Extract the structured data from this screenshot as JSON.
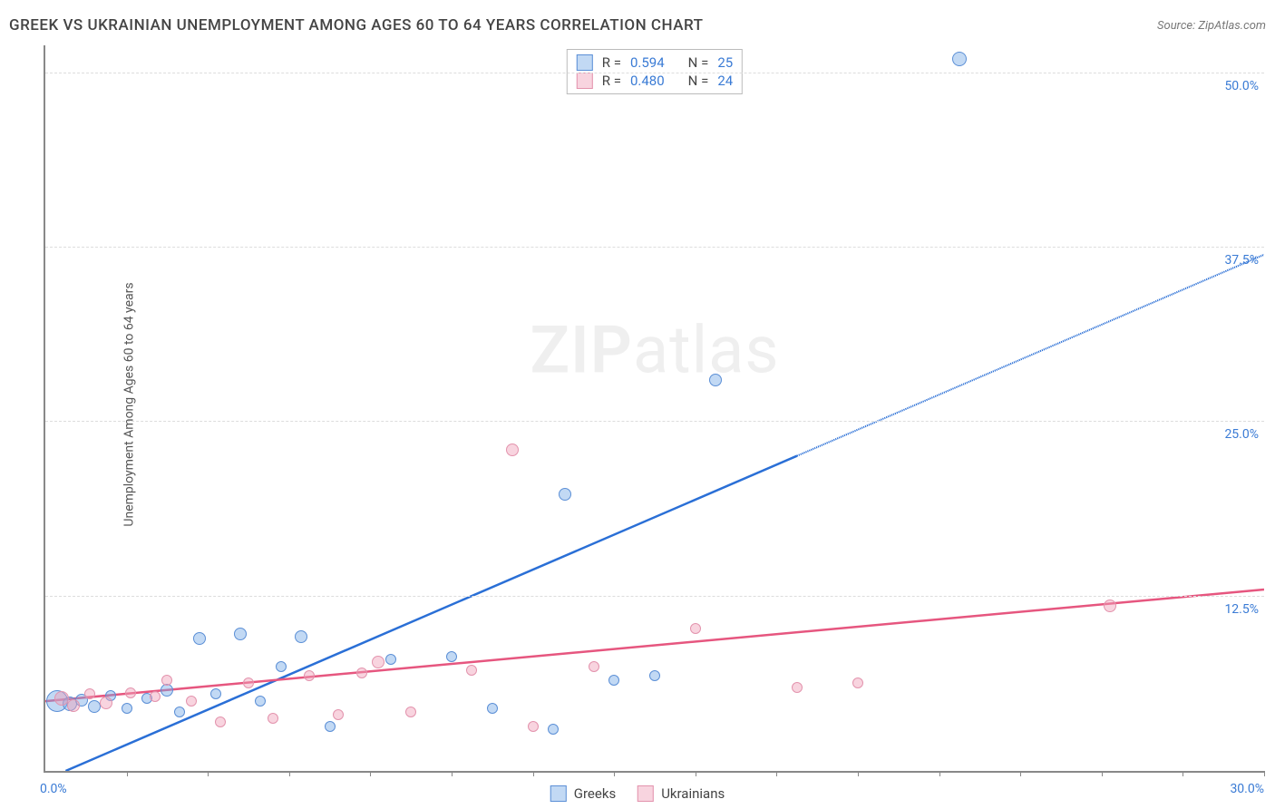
{
  "header": {
    "title": "GREEK VS UKRAINIAN UNEMPLOYMENT AMONG AGES 60 TO 64 YEARS CORRELATION CHART",
    "source": "Source: ZipAtlas.com"
  },
  "chart": {
    "type": "scatter",
    "y_axis_label": "Unemployment Among Ages 60 to 64 years",
    "xlim": [
      0,
      30
    ],
    "ylim": [
      0,
      52
    ],
    "x_ticks_minor_step": 2,
    "y_gridlines": [
      12.5,
      25,
      37.5,
      50
    ],
    "y_tick_labels": [
      "12.5%",
      "25.0%",
      "37.5%",
      "50.0%"
    ],
    "x_start_label": "0.0%",
    "x_end_label": "30.0%",
    "grid_color": "#dddddd",
    "axis_color": "#888888",
    "axis_value_color": "#3a7bd5",
    "background_color": "#ffffff",
    "watermark": {
      "bold": "ZIP",
      "rest": "atlas"
    },
    "series": [
      {
        "name": "Greeks",
        "fill_color": "rgba(120,170,230,0.45)",
        "stroke_color": "#5b8fd6",
        "trend_color": "#2a6fd6",
        "trend": {
          "x1": 0.5,
          "y1": 0,
          "x2": 30,
          "y2": 37,
          "solid_until_x": 18.5
        },
        "points": [
          {
            "x": 0.3,
            "y": 5.0,
            "r": 12
          },
          {
            "x": 0.6,
            "y": 4.8,
            "r": 8
          },
          {
            "x": 0.9,
            "y": 5.1,
            "r": 7
          },
          {
            "x": 1.2,
            "y": 4.6,
            "r": 7
          },
          {
            "x": 1.6,
            "y": 5.4,
            "r": 6
          },
          {
            "x": 2.0,
            "y": 4.5,
            "r": 6
          },
          {
            "x": 2.5,
            "y": 5.2,
            "r": 6
          },
          {
            "x": 3.0,
            "y": 5.8,
            "r": 7
          },
          {
            "x": 3.3,
            "y": 4.2,
            "r": 6
          },
          {
            "x": 3.8,
            "y": 9.5,
            "r": 7
          },
          {
            "x": 4.2,
            "y": 5.5,
            "r": 6
          },
          {
            "x": 4.8,
            "y": 9.8,
            "r": 7
          },
          {
            "x": 5.3,
            "y": 5.0,
            "r": 6
          },
          {
            "x": 5.8,
            "y": 7.5,
            "r": 6
          },
          {
            "x": 6.3,
            "y": 9.6,
            "r": 7
          },
          {
            "x": 7.0,
            "y": 3.2,
            "r": 6
          },
          {
            "x": 8.5,
            "y": 8.0,
            "r": 6
          },
          {
            "x": 10.0,
            "y": 8.2,
            "r": 6
          },
          {
            "x": 11.0,
            "y": 4.5,
            "r": 6
          },
          {
            "x": 12.5,
            "y": 3.0,
            "r": 6
          },
          {
            "x": 12.8,
            "y": 19.8,
            "r": 7
          },
          {
            "x": 14.0,
            "y": 6.5,
            "r": 6
          },
          {
            "x": 15.0,
            "y": 6.8,
            "r": 6
          },
          {
            "x": 16.5,
            "y": 28.0,
            "r": 7
          },
          {
            "x": 22.5,
            "y": 51,
            "r": 8
          }
        ]
      },
      {
        "name": "Ukrainians",
        "fill_color": "rgba(240,160,185,0.45)",
        "stroke_color": "#e393ad",
        "trend_color": "#e6567f",
        "trend": {
          "x1": 0,
          "y1": 5.0,
          "x2": 30,
          "y2": 13.0,
          "solid_until_x": 30
        },
        "points": [
          {
            "x": 0.4,
            "y": 5.2,
            "r": 8
          },
          {
            "x": 0.7,
            "y": 4.7,
            "r": 7
          },
          {
            "x": 1.1,
            "y": 5.5,
            "r": 6
          },
          {
            "x": 1.5,
            "y": 4.9,
            "r": 7
          },
          {
            "x": 2.1,
            "y": 5.6,
            "r": 6
          },
          {
            "x": 2.7,
            "y": 5.3,
            "r": 6
          },
          {
            "x": 3.0,
            "y": 6.5,
            "r": 6
          },
          {
            "x": 3.6,
            "y": 5.0,
            "r": 6
          },
          {
            "x": 4.3,
            "y": 3.5,
            "r": 6
          },
          {
            "x": 5.0,
            "y": 6.3,
            "r": 6
          },
          {
            "x": 5.6,
            "y": 3.8,
            "r": 6
          },
          {
            "x": 6.5,
            "y": 6.8,
            "r": 6
          },
          {
            "x": 7.2,
            "y": 4.0,
            "r": 6
          },
          {
            "x": 7.8,
            "y": 7.0,
            "r": 6
          },
          {
            "x": 8.2,
            "y": 7.8,
            "r": 7
          },
          {
            "x": 9.0,
            "y": 4.2,
            "r": 6
          },
          {
            "x": 10.5,
            "y": 7.2,
            "r": 6
          },
          {
            "x": 11.5,
            "y": 23.0,
            "r": 7
          },
          {
            "x": 12.0,
            "y": 3.2,
            "r": 6
          },
          {
            "x": 13.5,
            "y": 7.5,
            "r": 6
          },
          {
            "x": 16.0,
            "y": 10.2,
            "r": 6
          },
          {
            "x": 18.5,
            "y": 6.0,
            "r": 6
          },
          {
            "x": 20.0,
            "y": 6.3,
            "r": 6
          },
          {
            "x": 26.2,
            "y": 11.8,
            "r": 7
          }
        ]
      }
    ],
    "correlation_legend": [
      {
        "swatch_fill": "rgba(120,170,230,0.45)",
        "swatch_stroke": "#5b8fd6",
        "r_label": "R  =",
        "r_value": "0.594",
        "n_label": "N  =",
        "n_value": "25"
      },
      {
        "swatch_fill": "rgba(240,160,185,0.45)",
        "swatch_stroke": "#e393ad",
        "r_label": "R  =",
        "r_value": "0.480",
        "n_label": "N  =",
        "n_value": "24"
      }
    ],
    "bottom_legend": [
      {
        "label": "Greeks",
        "swatch_fill": "rgba(120,170,230,0.45)",
        "swatch_stroke": "#5b8fd6"
      },
      {
        "label": "Ukrainians",
        "swatch_fill": "rgba(240,160,185,0.45)",
        "swatch_stroke": "#e393ad"
      }
    ]
  }
}
